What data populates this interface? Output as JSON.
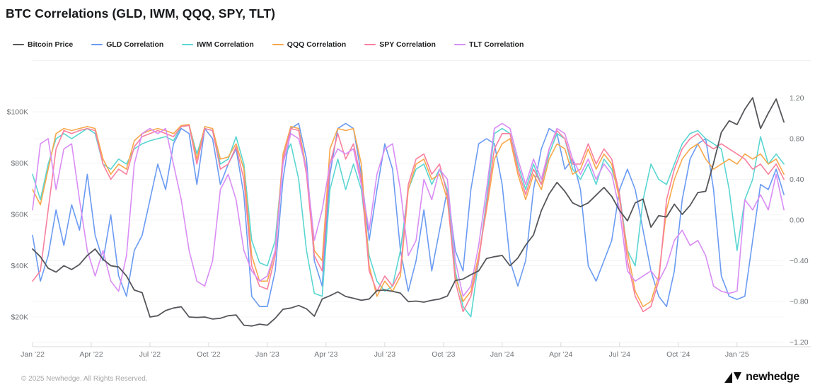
{
  "title": "BTC Correlations (GLD, IWM, QQQ, SPY, TLT)",
  "footer": {
    "copyright": "© 2025 Newhedge. All Rights Reserved.",
    "brand": "newhedge"
  },
  "colors": {
    "bitcoin": "#54565a",
    "gld": "#6b9bf2",
    "iwm": "#5ad6d2",
    "qqq": "#f7a84b",
    "spy": "#f9809f",
    "tlt": "#d98df4",
    "grid": "#f4f4f4",
    "axis_line": "#d8d8d8",
    "logo": "#0d0d0f"
  },
  "chart_data": {
    "type": "line",
    "title": "BTC Correlations (GLD, IWM, QQQ, SPY, TLT)",
    "legend_position": "top",
    "grid": true,
    "x_axis": {
      "tick_labels": [
        "Jan ’22",
        "Apr ’22",
        "Jul ’22",
        "Oct ’22",
        "Jan ’23",
        "Apr ’23",
        "Jul ’23",
        "Oct ’23",
        "Jan ’24",
        "Apr ’24",
        "Jul ’24",
        "Oct ’24",
        "Jan ’25"
      ],
      "tick_months": [
        0,
        3,
        6,
        9,
        12,
        15,
        18,
        21,
        24,
        27,
        30,
        33,
        36
      ],
      "start_month": 0,
      "end_month": 38.4
    },
    "left_axis": {
      "tick_labels": [
        "$20K",
        "$40K",
        "$60K",
        "$80K",
        "$100K"
      ],
      "tick_values": [
        20,
        40,
        60,
        80,
        100
      ],
      "unit": "USD thousands"
    },
    "right_axis": {
      "tick_labels": [
        "1.20",
        "0.80",
        "0.40",
        "0.00",
        "−0.40",
        "−0.80",
        "−1.20"
      ],
      "tick_values": [
        1.2,
        0.8,
        0.4,
        0,
        -0.4,
        -0.8,
        -1.2
      ]
    },
    "series": [
      {
        "name": "GLD Correlation",
        "key": "gld",
        "axis": "right",
        "x_start": 0,
        "x_step": 0.4,
        "values": [
          -0.15,
          -0.6,
          -0.35,
          0.1,
          -0.25,
          0.15,
          -0.1,
          0.45,
          -0.15,
          -0.4,
          0.05,
          -0.55,
          -0.75,
          -0.3,
          -0.15,
          0.2,
          0.55,
          0.3,
          0.75,
          0.9,
          0.85,
          0.35,
          0.9,
          0.8,
          0.35,
          0.55,
          0.7,
          0.25,
          -0.75,
          -0.85,
          -0.85,
          -0.5,
          0.4,
          0.9,
          0.95,
          0.6,
          -0.4,
          -0.65,
          0.45,
          0.9,
          0.95,
          0.9,
          0.45,
          -0.2,
          0.3,
          0.75,
          0.5,
          -0.3,
          -0.7,
          -0.4,
          0.1,
          -0.5,
          -0.1,
          0.3,
          -0.3,
          -0.5,
          0.3,
          0.75,
          0.8,
          0.75,
          0.35,
          -0.4,
          -0.65,
          -0.4,
          0.3,
          0.7,
          0.9,
          0.85,
          0.5,
          0.6,
          0.3,
          -0.45,
          -0.6,
          -0.4,
          -0.2,
          0.3,
          0.5,
          0.3,
          -0.1,
          -0.5,
          -0.75,
          -0.85,
          -0.5,
          0.2,
          0.6,
          0.75,
          0.8,
          0.3,
          -0.55,
          -0.75,
          -0.78,
          -0.75,
          -0.2,
          0.35,
          0.3,
          0.5,
          0.25
        ]
      },
      {
        "name": "IWM Correlation",
        "key": "iwm",
        "axis": "right",
        "x_start": 0,
        "x_step": 0.4,
        "values": [
          0.45,
          0.2,
          0.55,
          0.8,
          0.85,
          0.8,
          0.85,
          0.9,
          0.85,
          0.55,
          0.5,
          0.6,
          0.55,
          0.7,
          0.75,
          0.78,
          0.8,
          0.82,
          0.78,
          0.92,
          0.93,
          0.65,
          0.9,
          0.88,
          0.55,
          0.6,
          0.82,
          0.55,
          -0.2,
          -0.42,
          -0.45,
          -0.2,
          0.6,
          0.75,
          0.4,
          -0.3,
          -0.72,
          -0.75,
          0.3,
          0.6,
          0.3,
          0.55,
          0.3,
          -0.35,
          -0.6,
          -0.7,
          -0.65,
          -0.3,
          0.3,
          0.5,
          0.55,
          0.35,
          0.5,
          0.3,
          -0.5,
          -0.85,
          -0.95,
          -0.4,
          0.2,
          0.85,
          0.9,
          0.85,
          0.55,
          0.3,
          0.55,
          0.35,
          0.65,
          0.85,
          0.8,
          0.5,
          0.4,
          0.55,
          0.35,
          0.6,
          0.5,
          0.25,
          -0.3,
          -0.45,
          0.2,
          0.55,
          0.4,
          0.35,
          0.55,
          0.75,
          0.85,
          0.88,
          0.8,
          0.75,
          0.7,
          0.3,
          -0.3,
          0.2,
          0.4,
          0.82,
          0.55,
          0.65,
          0.55
        ]
      },
      {
        "name": "QQQ Correlation",
        "key": "qqq",
        "axis": "right",
        "x_start": 0,
        "x_step": 0.4,
        "values": [
          0.3,
          0.15,
          0.5,
          0.85,
          0.9,
          0.88,
          0.9,
          0.92,
          0.9,
          0.6,
          0.45,
          0.55,
          0.5,
          0.78,
          0.85,
          0.88,
          0.9,
          0.88,
          0.85,
          0.93,
          0.94,
          0.6,
          0.92,
          0.9,
          0.6,
          0.62,
          0.75,
          0.5,
          -0.35,
          -0.6,
          -0.6,
          -0.3,
          0.65,
          0.92,
          0.9,
          0.5,
          -0.3,
          -0.4,
          0.7,
          0.9,
          0.88,
          0.9,
          0.55,
          -0.45,
          -0.75,
          -0.6,
          -0.7,
          -0.55,
          0.3,
          0.55,
          0.6,
          0.4,
          0.45,
          0.2,
          -0.55,
          -0.8,
          -0.7,
          -0.35,
          0.1,
          0.6,
          0.75,
          0.8,
          0.45,
          0.2,
          0.45,
          0.3,
          0.6,
          0.75,
          0.7,
          0.45,
          0.5,
          0.7,
          0.5,
          0.65,
          0.55,
          0.2,
          -0.3,
          -0.7,
          -0.85,
          -0.8,
          -0.55,
          0.1,
          0.4,
          0.6,
          0.7,
          0.75,
          0.6,
          0.5,
          0.55,
          0.6,
          0.55,
          0.65,
          0.6,
          0.65,
          0.55,
          0.6,
          0.45
        ]
      },
      {
        "name": "SPY Correlation",
        "key": "spy",
        "axis": "right",
        "x_start": 0,
        "x_step": 0.4,
        "values": [
          -0.6,
          -0.5,
          0.1,
          0.7,
          0.88,
          0.85,
          0.88,
          0.9,
          0.88,
          0.55,
          0.4,
          0.5,
          0.45,
          0.72,
          0.82,
          0.85,
          0.88,
          0.85,
          0.82,
          0.92,
          0.93,
          0.55,
          0.9,
          0.88,
          0.5,
          0.55,
          0.72,
          0.4,
          -0.45,
          -0.65,
          -0.68,
          -0.35,
          0.6,
          0.9,
          0.88,
          0.45,
          -0.35,
          -0.5,
          0.55,
          0.85,
          0.6,
          0.75,
          0.4,
          -0.5,
          -0.7,
          -0.55,
          -0.65,
          -0.5,
          0.35,
          0.6,
          0.65,
          0.45,
          0.55,
          0.25,
          -0.6,
          -0.9,
          -0.75,
          -0.4,
          0.15,
          0.7,
          0.85,
          0.85,
          0.5,
          0.25,
          0.5,
          0.35,
          0.7,
          0.88,
          0.8,
          0.55,
          0.55,
          0.75,
          0.55,
          0.7,
          0.6,
          0.25,
          -0.4,
          -0.75,
          -0.9,
          -0.85,
          -0.6,
          0.2,
          0.5,
          0.7,
          0.8,
          0.85,
          0.75,
          0.7,
          0.75,
          0.7,
          0.65,
          0.6,
          0.5,
          0.55,
          0.45,
          0.55,
          0.4
        ]
      },
      {
        "name": "TLT Correlation",
        "key": "tlt",
        "axis": "right",
        "x_start": 0,
        "x_step": 0.4,
        "values": [
          0.1,
          0.75,
          0.8,
          0.3,
          0.7,
          0.75,
          0.2,
          -0.3,
          -0.55,
          -0.3,
          -0.6,
          -0.7,
          -0.35,
          0.55,
          0.85,
          0.9,
          0.85,
          0.9,
          0.55,
          0.2,
          -0.3,
          -0.6,
          -0.65,
          -0.4,
          0.3,
          0.45,
          0.2,
          -0.3,
          -0.5,
          -0.6,
          -0.55,
          -0.3,
          0.55,
          0.85,
          0.8,
          0.5,
          -0.2,
          0.1,
          0.55,
          0.7,
          0.65,
          0.7,
          0.35,
          -0.1,
          0.45,
          0.7,
          0.75,
          0.3,
          -0.35,
          -0.2,
          0.4,
          0.2,
          0.5,
          0.4,
          -0.4,
          -0.75,
          -0.65,
          -0.25,
          0.3,
          0.9,
          0.95,
          0.9,
          0.6,
          0.35,
          0.6,
          0.4,
          0.7,
          0.9,
          0.85,
          0.6,
          0.45,
          0.6,
          0.4,
          0.55,
          0.45,
          0.1,
          -0.5,
          -0.6,
          -0.55,
          -0.5,
          -0.6,
          -0.45,
          -0.2,
          -0.1,
          -0.25,
          -0.2,
          -0.35,
          -0.65,
          -0.7,
          -0.72,
          -0.7,
          0.2,
          0.1,
          0.25,
          0.1,
          0.45,
          0.1
        ]
      },
      {
        "name": "Bitcoin Price",
        "key": "bitcoin",
        "axis": "left",
        "x_start": 0,
        "x_step": 0.4,
        "values": [
          46.5,
          43.5,
          39,
          37.5,
          40,
          38.5,
          40.5,
          44,
          46.5,
          42.5,
          40,
          39.5,
          36,
          30.5,
          29.5,
          20,
          20.5,
          22.5,
          23.5,
          24,
          20,
          19.8,
          20,
          19.2,
          19.5,
          20.5,
          20.8,
          16.8,
          16.5,
          17.2,
          16.8,
          19.5,
          23,
          23.5,
          24.5,
          23.2,
          20.3,
          27,
          28.3,
          29.8,
          28,
          27.3,
          26.5,
          27,
          30.3,
          30.5,
          30,
          29.3,
          26,
          26.2,
          25.8,
          26.5,
          27,
          28.2,
          34.2,
          34.8,
          36.5,
          38,
          42.8,
          43.5,
          44,
          40,
          43,
          48,
          52,
          61.5,
          68,
          72.5,
          69,
          64.5,
          63,
          64.5,
          67.5,
          70.5,
          67,
          61.5,
          57.5,
          64.5,
          66,
          55,
          59.5,
          59,
          64,
          60,
          63.5,
          68.5,
          69,
          80,
          92,
          96.5,
          95,
          101,
          105.5,
          93.5,
          99.5,
          105,
          96
        ]
      }
    ],
    "legend_order": [
      "Bitcoin Price",
      "GLD Correlation",
      "IWM Correlation",
      "QQQ Correlation",
      "SPY Correlation",
      "TLT Correlation"
    ]
  }
}
